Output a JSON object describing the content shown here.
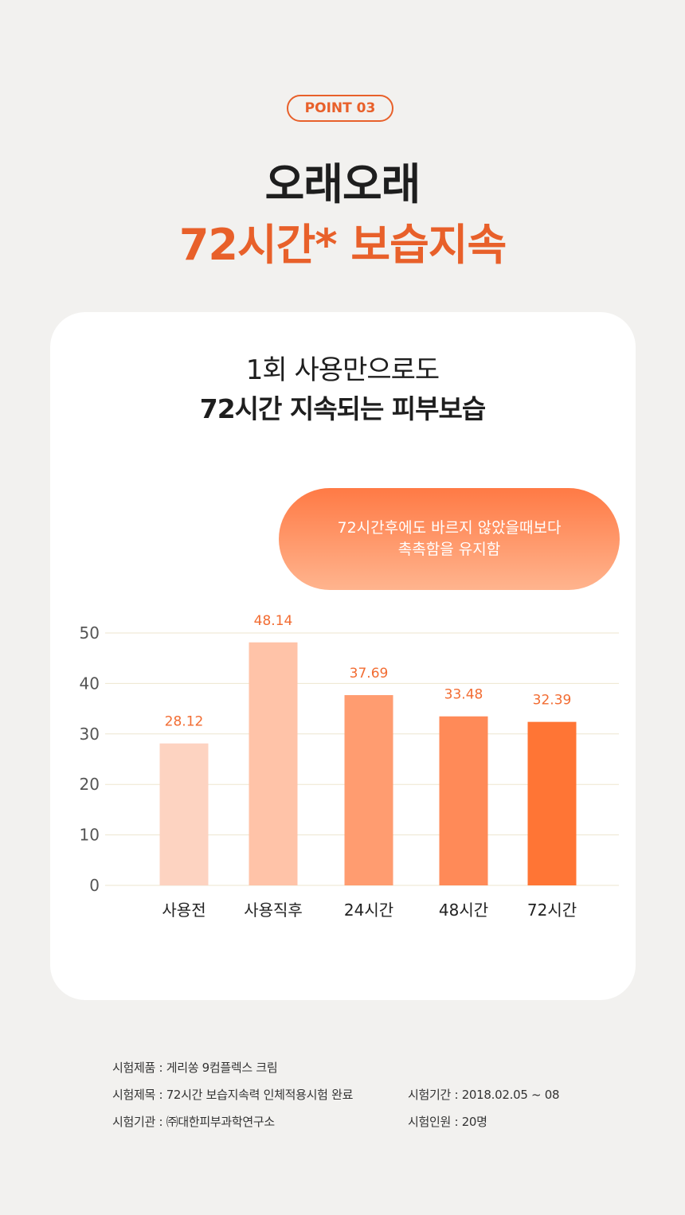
{
  "badge": "POINT 03",
  "headline": {
    "line1": "오래오래",
    "line2": "72시간* 보습지속"
  },
  "card": {
    "subtitle1": "1회 사용만으로도",
    "subtitle2": "72시간 지속되는 피부보습",
    "bubble": {
      "line1": "72시간후에도 바르지 않았을때보다",
      "line2": "촉촉함을 유지함"
    }
  },
  "chart_data": {
    "type": "bar",
    "categories": [
      "사용전",
      "사용직후",
      "24시간",
      "48시간",
      "72시간"
    ],
    "values": [
      28.12,
      48.14,
      37.69,
      33.48,
      32.39
    ],
    "value_labels": [
      "28.12",
      "48.14",
      "37.69",
      "33.48",
      "32.39"
    ],
    "ylim": [
      0,
      50
    ],
    "yticks": [
      0,
      10,
      20,
      30,
      40,
      50
    ],
    "grid": true,
    "colors": [
      "#fdd3c1",
      "#ffc3a8",
      "#ff9c70",
      "#ff8a58",
      "#ff7535"
    ],
    "label_color": "#f26c32"
  },
  "notes": {
    "product": "시험제품 : 게리쏭 9컴플렉스 크림",
    "title": "시험제목 : 72시간 보습지속력 인체적용시험 완료",
    "org": "시험기관 : ㈜대한피부과학연구소",
    "period": "시험기간 : 2018.02.05 ~ 08",
    "people": "시험인원 : 20명"
  }
}
